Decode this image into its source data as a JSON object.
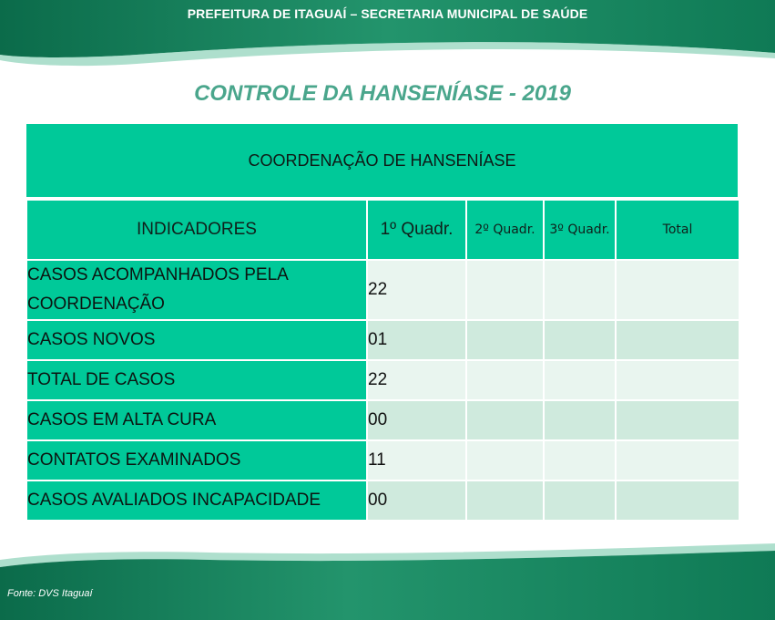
{
  "header": {
    "title": "PREFEITURA DE ITAGUAÍ – SECRETARIA MUNICIPAL DE SAÚDE"
  },
  "slide": {
    "title": "CONTROLE DA HANSENÍASE - 2019"
  },
  "banner": {
    "label": "COORDENAÇÃO DE HANSENÍASE"
  },
  "table": {
    "columns": [
      "INDICADORES",
      "1º Quadr.",
      "2º Quadr.",
      "3º Quadr.",
      "Total"
    ],
    "rows": [
      {
        "indicator": "CASOS ACOMPANHADOS PELA COORDENAÇÃO",
        "q1": "22",
        "q2": "",
        "q3": "",
        "total": ""
      },
      {
        "indicator": "CASOS NOVOS",
        "q1": "01",
        "q2": "",
        "q3": "",
        "total": ""
      },
      {
        "indicator": "TOTAL DE CASOS",
        "q1": "22",
        "q2": "",
        "q3": "",
        "total": ""
      },
      {
        "indicator": "CASOS EM ALTA CURA",
        "q1": "00",
        "q2": "",
        "q3": "",
        "total": ""
      },
      {
        "indicator": "CONTATOS EXAMINADOS",
        "q1": "11",
        "q2": "",
        "q3": "",
        "total": ""
      },
      {
        "indicator": "CASOS AVALIADOS INCAPACIDADE",
        "q1": "00",
        "q2": "",
        "q3": "",
        "total": ""
      }
    ]
  },
  "footer": {
    "source": "Fonte: DVS Itaguaí"
  },
  "colors": {
    "band_dark": "#0b6b4a",
    "band_mid": "#1f8d66",
    "header_cell": "#00c999",
    "title_text": "#4aa68c",
    "row_light": "#e9f5ef",
    "row_dark": "#cfeadd"
  }
}
